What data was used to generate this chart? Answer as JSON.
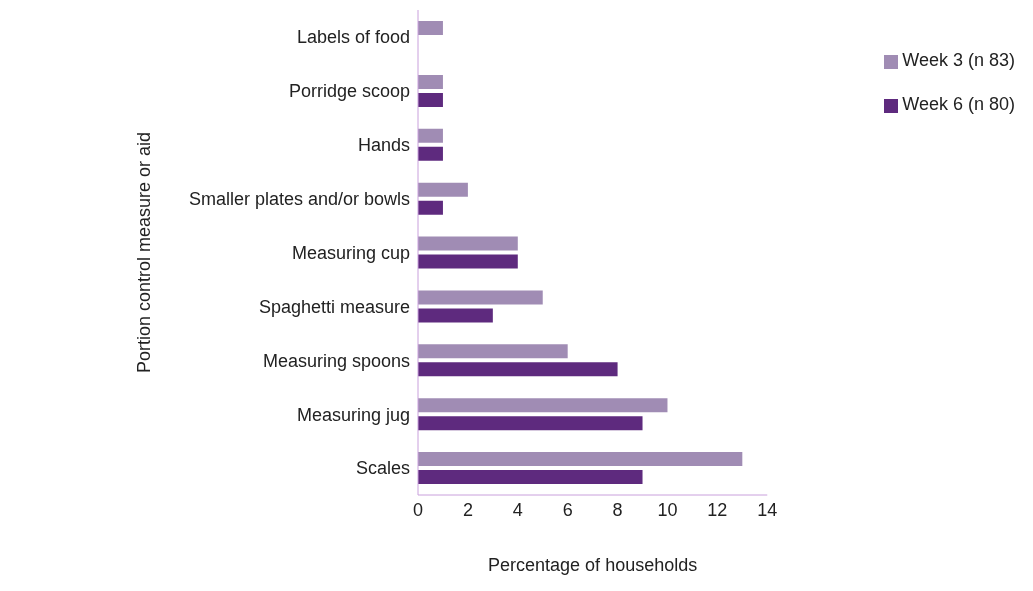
{
  "chart_data": {
    "type": "bar",
    "orientation": "horizontal",
    "xlabel": "Percentage of households",
    "ylabel": "Portion control measure or aid",
    "categories": [
      "Labels of food",
      "Porridge scoop",
      "Hands",
      "Smaller plates and/or bowls",
      "Measuring cup",
      "Spaghetti measure",
      "Measuring spoons",
      "Measuring jug",
      "Scales"
    ],
    "series": [
      {
        "name": "Week 3 (n 83)",
        "color": "#a08cb4",
        "values": [
          1,
          1,
          1,
          2,
          4,
          5,
          6,
          10,
          13
        ]
      },
      {
        "name": "Week 6 (n 80)",
        "color": "#5e2a7e",
        "values": [
          0,
          1,
          1,
          1,
          4,
          3,
          8,
          9,
          9
        ]
      }
    ],
    "xlim": [
      0,
      14
    ],
    "xticks": [
      0,
      2,
      4,
      6,
      8,
      10,
      12,
      14
    ],
    "grid": false,
    "legend": "top right"
  }
}
